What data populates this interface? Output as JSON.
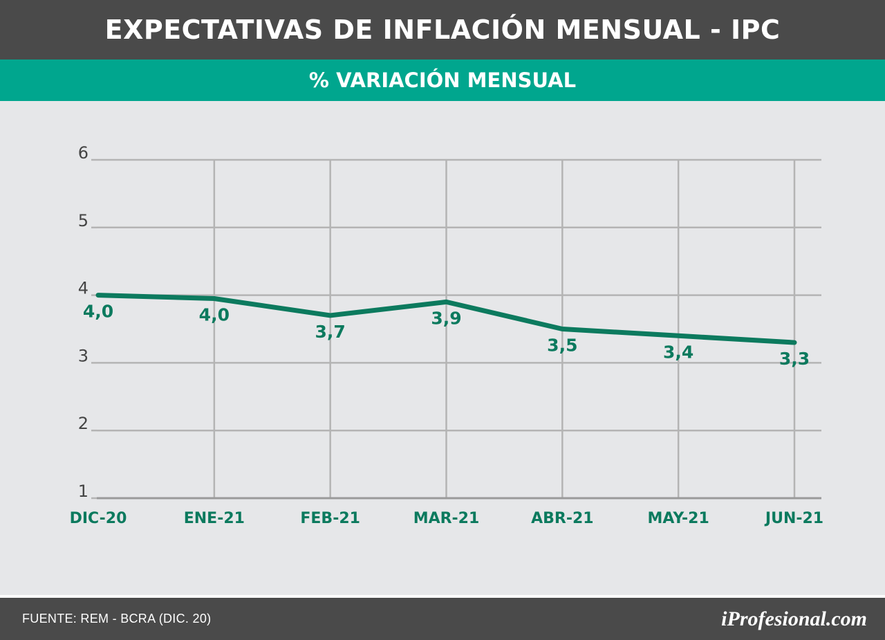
{
  "header": {
    "title": "EXPECTATIVAS DE INFLACIÓN MENSUAL - IPC",
    "subtitle": "% VARIACIÓN MENSUAL"
  },
  "footer": {
    "source": "FUENTE: REM - BCRA (DIC. 20)",
    "brand": "iProfesional.com"
  },
  "colors": {
    "line": "#0c7a5e",
    "header_bg": "#4a4a4a",
    "accent": "#00a68e",
    "grid": "#b4b4b4",
    "axis_label": "#0c7a5e"
  },
  "chart_data": {
    "type": "line",
    "title": "EXPECTATIVAS DE INFLACIÓN MENSUAL - IPC",
    "subtitle": "% VARIACIÓN MENSUAL",
    "xlabel": "",
    "ylabel": "",
    "categories": [
      "DIC-20",
      "ENE-21",
      "FEB-21",
      "MAR-21",
      "ABR-21",
      "MAY-21",
      "JUN-21"
    ],
    "series": [
      {
        "values": [
          4.0,
          3.95,
          3.7,
          3.9,
          3.5,
          3.4,
          3.3
        ],
        "labels": [
          "4,0",
          "4,0",
          "3,7",
          "3,9",
          "3,5",
          "3,4",
          "3,3"
        ]
      }
    ],
    "ylim": [
      1,
      6
    ],
    "yticks": [
      1,
      2,
      3,
      4,
      5,
      6
    ],
    "grid": true,
    "legend": "none"
  }
}
